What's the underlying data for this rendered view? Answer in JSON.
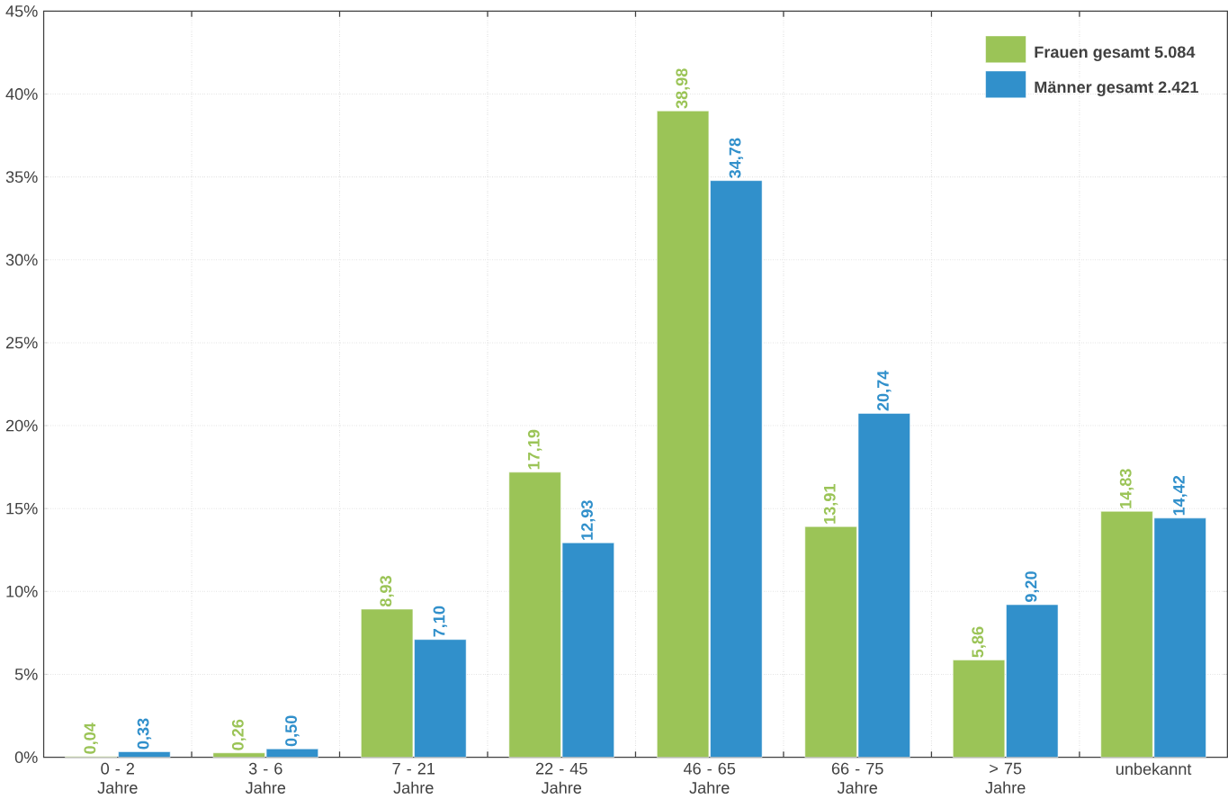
{
  "chart_data": {
    "type": "bar",
    "categories": [
      "0 - 2 Jahre",
      "3 - 6 Jahre",
      "7 - 21 Jahre",
      "22 - 45 Jahre",
      "46 - 65 Jahre",
      "66 - 75 Jahre",
      "> 75 Jahre",
      "unbekannt"
    ],
    "series": [
      {
        "name": "**Frauen gesamt 5.084**",
        "color": "#9bc457",
        "values": [
          0.04,
          0.26,
          8.93,
          17.19,
          38.98,
          13.91,
          5.86,
          14.83
        ],
        "value_labels": [
          "0,04",
          "0,26",
          "8,93",
          "17,19",
          "38,98",
          "13,91",
          "5,86",
          "14,83"
        ]
      },
      {
        "name": "**Männer gesamt 2.421**",
        "color": "#3190cb",
        "values": [
          0.33,
          0.5,
          7.1,
          12.93,
          34.78,
          20.74,
          9.2,
          14.42
        ],
        "value_labels": [
          "0,33",
          "0,50",
          "7,10",
          "12,93",
          "34,78",
          "20,74",
          "9,20",
          "14,42"
        ]
      }
    ],
    "ylim": [
      0,
      45
    ],
    "yticks": [
      {
        "value": 0,
        "label": "0%"
      },
      {
        "value": 5,
        "label": "5%"
      },
      {
        "value": 10,
        "label": "10%"
      },
      {
        "value": 15,
        "label": "15%"
      },
      {
        "value": 20,
        "label": "20%"
      },
      {
        "value": 25,
        "label": "25%"
      },
      {
        "value": 30,
        "label": "30%"
      },
      {
        "value": 35,
        "label": "35%"
      },
      {
        "value": 40,
        "label": "40%"
      },
      {
        "value": 45,
        "label": "45%"
      }
    ],
    "grid": true,
    "legend": "top right"
  }
}
